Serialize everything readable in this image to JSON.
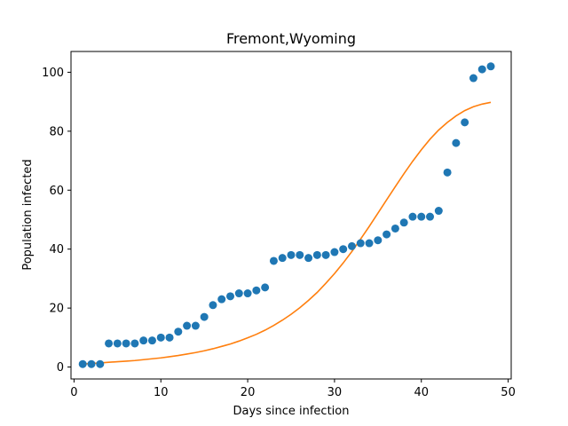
{
  "chart_data": {
    "type": "scatter",
    "title": "Fremont,Wyoming",
    "xlabel": "Days since infection",
    "ylabel": "Population infected",
    "xlim": [
      -0.35,
      50.35
    ],
    "ylim": [
      -4.05,
      107.05
    ],
    "xticks": [
      0,
      10,
      20,
      30,
      40,
      50
    ],
    "yticks": [
      0,
      20,
      40,
      60,
      80,
      100
    ],
    "grid": false,
    "series": [
      {
        "kind": "scatter",
        "color": "#1f77b4",
        "x": [
          1,
          2,
          3,
          4,
          5,
          6,
          7,
          8,
          9,
          10,
          11,
          12,
          13,
          14,
          15,
          16,
          17,
          18,
          19,
          20,
          21,
          22,
          23,
          24,
          25,
          26,
          27,
          28,
          29,
          30,
          31,
          32,
          33,
          34,
          35,
          36,
          37,
          38,
          39,
          40,
          41,
          42,
          43,
          44,
          45,
          46,
          47,
          48
        ],
        "y": [
          1,
          1,
          1,
          8,
          8,
          8,
          8,
          9,
          9,
          10,
          10,
          12,
          14,
          14,
          17,
          21,
          23,
          24,
          25,
          25,
          26,
          27,
          36,
          37,
          38,
          38,
          37,
          38,
          38,
          39,
          40,
          41,
          42,
          42,
          43,
          45,
          47,
          49,
          51,
          51,
          51,
          53,
          66,
          76,
          83,
          98,
          101,
          102
        ]
      },
      {
        "kind": "line",
        "color": "#ff7f0e",
        "x": [
          1,
          2,
          3,
          4,
          5,
          6,
          7,
          8,
          9,
          10,
          11,
          12,
          13,
          14,
          15,
          16,
          17,
          18,
          19,
          20,
          21,
          22,
          23,
          24,
          25,
          26,
          27,
          28,
          29,
          30,
          31,
          32,
          33,
          34,
          35,
          36,
          37,
          38,
          39,
          40,
          41,
          42,
          43,
          44,
          45,
          46,
          47,
          48
        ],
        "y": [
          1.0,
          1.2,
          1.4,
          1.6,
          1.8,
          2.0,
          2.2,
          2.5,
          2.8,
          3.1,
          3.5,
          3.9,
          4.4,
          4.9,
          5.5,
          6.2,
          7.0,
          7.8,
          8.8,
          9.9,
          11.1,
          12.5,
          14.1,
          15.9,
          17.9,
          20.1,
          22.6,
          25.3,
          28.4,
          31.7,
          35.3,
          39.2,
          43.4,
          47.7,
          52.2,
          56.7,
          61.2,
          65.6,
          69.8,
          73.7,
          77.3,
          80.4,
          83.0,
          85.2,
          87.0,
          88.3,
          89.2,
          89.8
        ]
      }
    ]
  }
}
